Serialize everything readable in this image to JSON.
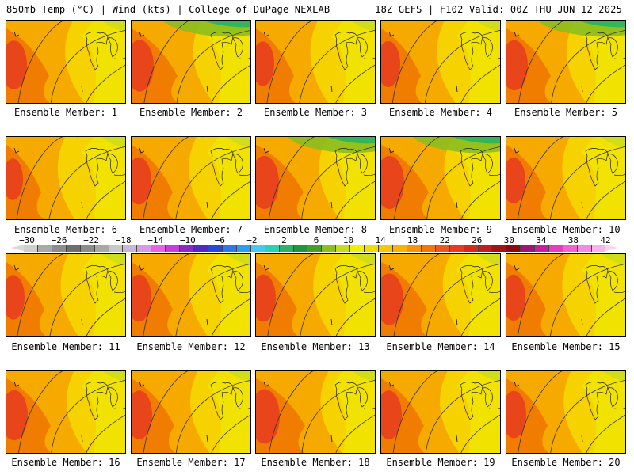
{
  "header": {
    "left": "850mb Temp (°C) | Wind (kts) | College of DuPage NEXLAB",
    "right": "18Z GEFS | F102 Valid: 00Z THU JUN 12 2025"
  },
  "panels": [
    {
      "label": "Ensemble Member: 1",
      "hot": 0.6
    },
    {
      "label": "Ensemble Member: 2",
      "hot": 0.7
    },
    {
      "label": "Ensemble Member: 3",
      "hot": 0.45
    },
    {
      "label": "Ensemble Member: 4",
      "hot": 0.5
    },
    {
      "label": "Ensemble Member: 5",
      "hot": 0.65
    },
    {
      "label": "Ensemble Member: 6",
      "hot": 0.35
    },
    {
      "label": "Ensemble Member: 7",
      "hot": 0.55
    },
    {
      "label": "Ensemble Member: 8",
      "hot": 0.75
    },
    {
      "label": "Ensemble Member: 9",
      "hot": 0.75
    },
    {
      "label": "Ensemble Member: 10",
      "hot": 0.5
    },
    {
      "label": "Ensemble Member: 11",
      "hot": 0.45
    },
    {
      "label": "Ensemble Member: 12",
      "hot": 0.55
    },
    {
      "label": "Ensemble Member: 13",
      "hot": 0.55
    },
    {
      "label": "Ensemble Member: 14",
      "hot": 0.7
    },
    {
      "label": "Ensemble Member: 15",
      "hot": 0.5
    },
    {
      "label": "Ensemble Member: 16",
      "hot": 0.65
    },
    {
      "label": "Ensemble Member: 17",
      "hot": 0.6
    },
    {
      "label": "Ensemble Member: 18",
      "hot": 0.8
    },
    {
      "label": "Ensemble Member: 19",
      "hot": 0.6
    },
    {
      "label": "Ensemble Member: 20",
      "hot": 0.55
    }
  ],
  "colorbar": {
    "ticks": [
      "−30",
      "−26",
      "−22",
      "−18",
      "−14",
      "−10",
      "−6",
      "−2",
      "2",
      "6",
      "10",
      "14",
      "18",
      "22",
      "26",
      "30",
      "34",
      "38",
      "42"
    ],
    "colors": [
      "#cfcfcf",
      "#a9a9a9",
      "#8c8c8c",
      "#6e6e6e",
      "#8c8c8c",
      "#a8a8a8",
      "#c8c8c8",
      "#c9b6dc",
      "#d49be6",
      "#e663e6",
      "#c83cdc",
      "#8c28c8",
      "#5028c8",
      "#2846dc",
      "#2878f0",
      "#28a0f0",
      "#46c8f0",
      "#28d2b4",
      "#28b464",
      "#1e963c",
      "#46a028",
      "#8cbe1e",
      "#c8dc1e",
      "#f0f000",
      "#f5dc00",
      "#f5c800",
      "#f5b400",
      "#f59600",
      "#f07800",
      "#eb5a14",
      "#e63c1e",
      "#d7281e",
      "#be1e1e",
      "#a01414",
      "#8c0a0a",
      "#a0147a",
      "#c81ea0",
      "#e63cbe",
      "#f064d2",
      "#f08ce6",
      "#f6b4ee"
    ]
  }
}
